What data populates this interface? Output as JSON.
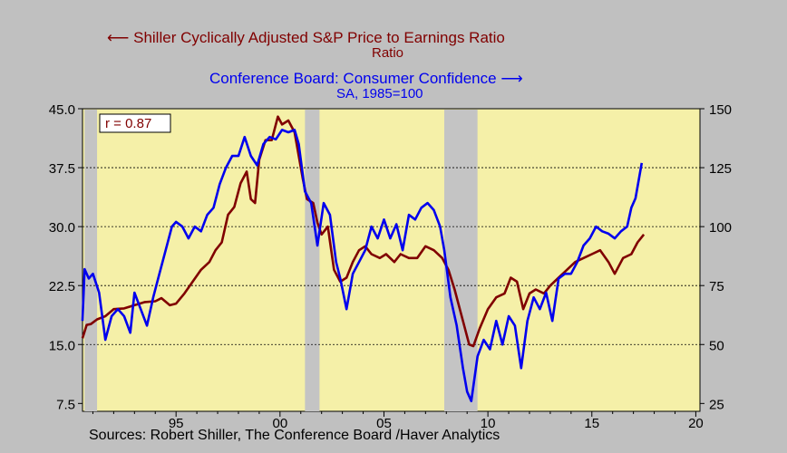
{
  "chart_data": {
    "type": "line",
    "title": "",
    "annotation": "r = 0.87",
    "source": "Sources:  Robert Shiller, The Conference Board /Haver Analytics",
    "x_axis": {
      "range": [
        1990.5,
        2020.2
      ],
      "ticks": [
        {
          "value": 1995,
          "label": "95"
        },
        {
          "value": 2000,
          "label": "00"
        },
        {
          "value": 2005,
          "label": "05"
        },
        {
          "value": 2010,
          "label": "10"
        },
        {
          "value": 2015,
          "label": "15"
        },
        {
          "value": 2020,
          "label": "20"
        }
      ]
    },
    "y_left": {
      "range": [
        6.5,
        45
      ],
      "ticks": [
        "45.0",
        "37.5",
        "30.0",
        "22.5",
        "15.0",
        "7.5"
      ],
      "tick_values": [
        45,
        37.5,
        30,
        22.5,
        15,
        7.5
      ]
    },
    "y_right": {
      "range": [
        21.67,
        150
      ],
      "ticks": [
        "150",
        "125",
        "100",
        "75",
        "50",
        "25"
      ],
      "tick_values": [
        150,
        125,
        100,
        75,
        50,
        25
      ]
    },
    "gridlines": [
      37.5,
      30,
      22.5,
      15
    ],
    "recessions": [
      [
        1990.6,
        1991.2
      ],
      [
        2001.2,
        2001.9
      ],
      [
        2007.9,
        2009.5
      ]
    ],
    "series": [
      {
        "name": "Shiller Cyclically Adjusted S&P Price to Earnings Ratio",
        "unit": "Ratio",
        "axis": "left",
        "color": "#800000",
        "legend_arrow": "left",
        "points": [
          [
            1990.5,
            15.8
          ],
          [
            1990.7,
            17.5
          ],
          [
            1990.9,
            17.6
          ],
          [
            1991.2,
            18.2
          ],
          [
            1991.6,
            18.6
          ],
          [
            1992.0,
            19.5
          ],
          [
            1992.5,
            19.6
          ],
          [
            1993.0,
            20.0
          ],
          [
            1993.5,
            20.4
          ],
          [
            1994.0,
            20.5
          ],
          [
            1994.3,
            20.9
          ],
          [
            1994.7,
            20.0
          ],
          [
            1995.0,
            20.2
          ],
          [
            1995.4,
            21.5
          ],
          [
            1995.8,
            23.0
          ],
          [
            1996.2,
            24.5
          ],
          [
            1996.6,
            25.5
          ],
          [
            1996.9,
            27.0
          ],
          [
            1997.2,
            28.0
          ],
          [
            1997.5,
            31.5
          ],
          [
            1997.8,
            32.5
          ],
          [
            1998.1,
            35.5
          ],
          [
            1998.4,
            37.0
          ],
          [
            1998.6,
            33.5
          ],
          [
            1998.8,
            33.0
          ],
          [
            1999.0,
            38.5
          ],
          [
            1999.3,
            41.0
          ],
          [
            1999.6,
            41.0
          ],
          [
            1999.9,
            44.0
          ],
          [
            2000.1,
            43.0
          ],
          [
            2000.4,
            43.5
          ],
          [
            2000.7,
            42.0
          ],
          [
            2000.9,
            39.0
          ],
          [
            2001.1,
            36.0
          ],
          [
            2001.3,
            33.5
          ],
          [
            2001.6,
            33.0
          ],
          [
            2001.8,
            30.5
          ],
          [
            2002.0,
            29.0
          ],
          [
            2002.3,
            30.0
          ],
          [
            2002.6,
            24.5
          ],
          [
            2002.9,
            23.0
          ],
          [
            2003.2,
            23.5
          ],
          [
            2003.5,
            25.5
          ],
          [
            2003.8,
            27.0
          ],
          [
            2004.1,
            27.5
          ],
          [
            2004.4,
            26.5
          ],
          [
            2004.8,
            26.0
          ],
          [
            2005.1,
            26.5
          ],
          [
            2005.5,
            25.5
          ],
          [
            2005.8,
            26.5
          ],
          [
            2006.2,
            26.0
          ],
          [
            2006.6,
            26.0
          ],
          [
            2007.0,
            27.5
          ],
          [
            2007.4,
            27.0
          ],
          [
            2007.8,
            26.0
          ],
          [
            2008.1,
            24.5
          ],
          [
            2008.4,
            22.0
          ],
          [
            2008.8,
            18.0
          ],
          [
            2009.1,
            15.0
          ],
          [
            2009.3,
            14.8
          ],
          [
            2009.6,
            17.0
          ],
          [
            2010.0,
            19.5
          ],
          [
            2010.4,
            21.0
          ],
          [
            2010.8,
            21.5
          ],
          [
            2011.1,
            23.5
          ],
          [
            2011.4,
            23.0
          ],
          [
            2011.7,
            19.5
          ],
          [
            2012.0,
            21.5
          ],
          [
            2012.3,
            22.0
          ],
          [
            2012.7,
            21.5
          ],
          [
            2013.0,
            22.5
          ],
          [
            2013.4,
            23.5
          ],
          [
            2013.8,
            24.5
          ],
          [
            2014.2,
            25.5
          ],
          [
            2014.6,
            26.0
          ],
          [
            2015.0,
            26.5
          ],
          [
            2015.4,
            27.0
          ],
          [
            2015.8,
            25.5
          ],
          [
            2016.1,
            24.0
          ],
          [
            2016.5,
            26.0
          ],
          [
            2016.9,
            26.5
          ],
          [
            2017.2,
            28.0
          ],
          [
            2017.5,
            29.0
          ]
        ]
      },
      {
        "name": "Conference Board: Consumer Confidence",
        "unit": "SA, 1985=100",
        "axis": "right",
        "color": "#0000ee",
        "legend_arrow": "right",
        "points": [
          [
            1990.5,
            60
          ],
          [
            1990.6,
            82
          ],
          [
            1990.8,
            78
          ],
          [
            1991.0,
            80
          ],
          [
            1991.3,
            72
          ],
          [
            1991.6,
            52
          ],
          [
            1991.9,
            62
          ],
          [
            1992.2,
            65
          ],
          [
            1992.5,
            62
          ],
          [
            1992.8,
            55
          ],
          [
            1993.0,
            72
          ],
          [
            1993.3,
            65
          ],
          [
            1993.6,
            58
          ],
          [
            1993.9,
            70
          ],
          [
            1994.2,
            80
          ],
          [
            1994.5,
            90
          ],
          [
            1994.8,
            100
          ],
          [
            1995.0,
            102
          ],
          [
            1995.3,
            100
          ],
          [
            1995.6,
            95
          ],
          [
            1995.9,
            100
          ],
          [
            1996.2,
            98
          ],
          [
            1996.5,
            105
          ],
          [
            1996.8,
            108
          ],
          [
            1997.1,
            118
          ],
          [
            1997.4,
            125
          ],
          [
            1997.7,
            130
          ],
          [
            1998.0,
            130
          ],
          [
            1998.3,
            138
          ],
          [
            1998.6,
            130
          ],
          [
            1998.9,
            126
          ],
          [
            1999.2,
            135
          ],
          [
            1999.5,
            138
          ],
          [
            1999.8,
            137
          ],
          [
            2000.1,
            141
          ],
          [
            2000.4,
            140
          ],
          [
            2000.7,
            141
          ],
          [
            2000.9,
            135
          ],
          [
            2001.2,
            115
          ],
          [
            2001.5,
            110
          ],
          [
            2001.8,
            92
          ],
          [
            2002.1,
            110
          ],
          [
            2002.4,
            105
          ],
          [
            2002.7,
            85
          ],
          [
            2002.9,
            78
          ],
          [
            2003.2,
            65
          ],
          [
            2003.5,
            80
          ],
          [
            2003.8,
            85
          ],
          [
            2004.1,
            90
          ],
          [
            2004.4,
            100
          ],
          [
            2004.7,
            95
          ],
          [
            2005.0,
            103
          ],
          [
            2005.3,
            95
          ],
          [
            2005.6,
            101
          ],
          [
            2005.9,
            90
          ],
          [
            2006.2,
            105
          ],
          [
            2006.5,
            103
          ],
          [
            2006.8,
            108
          ],
          [
            2007.1,
            110
          ],
          [
            2007.4,
            107
          ],
          [
            2007.7,
            100
          ],
          [
            2007.9,
            90
          ],
          [
            2008.2,
            70
          ],
          [
            2008.5,
            58
          ],
          [
            2008.8,
            40
          ],
          [
            2009.0,
            30
          ],
          [
            2009.2,
            26
          ],
          [
            2009.5,
            45
          ],
          [
            2009.8,
            52
          ],
          [
            2010.1,
            48
          ],
          [
            2010.4,
            60
          ],
          [
            2010.7,
            50
          ],
          [
            2011.0,
            62
          ],
          [
            2011.3,
            58
          ],
          [
            2011.6,
            40
          ],
          [
            2011.9,
            60
          ],
          [
            2012.2,
            70
          ],
          [
            2012.5,
            65
          ],
          [
            2012.8,
            72
          ],
          [
            2013.1,
            60
          ],
          [
            2013.4,
            78
          ],
          [
            2013.7,
            80
          ],
          [
            2014.0,
            80
          ],
          [
            2014.3,
            85
          ],
          [
            2014.6,
            92
          ],
          [
            2014.9,
            95
          ],
          [
            2015.2,
            100
          ],
          [
            2015.5,
            98
          ],
          [
            2015.8,
            97
          ],
          [
            2016.1,
            95
          ],
          [
            2016.4,
            98
          ],
          [
            2016.7,
            100
          ],
          [
            2016.9,
            108
          ],
          [
            2017.1,
            112
          ],
          [
            2017.3,
            122
          ],
          [
            2017.4,
            127
          ]
        ]
      }
    ]
  }
}
